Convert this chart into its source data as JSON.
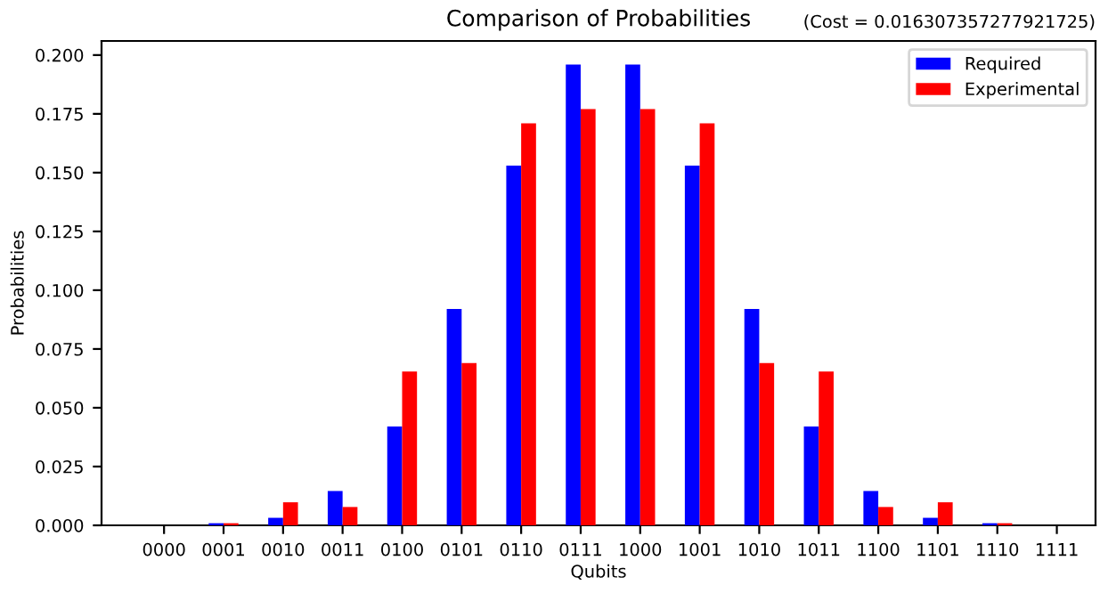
{
  "chart_data": {
    "type": "bar",
    "title": "Comparison of Probabilities",
    "xlabel": "Qubits",
    "ylabel": "Probabilities",
    "annotations": [
      "(Cost = 0.016307357277921725)"
    ],
    "categories": [
      "0000",
      "0001",
      "0010",
      "0011",
      "0100",
      "0101",
      "0110",
      "0111",
      "1000",
      "1001",
      "1010",
      "1011",
      "1100",
      "1101",
      "1110",
      "1111"
    ],
    "series": [
      {
        "name": "Required",
        "color": "#0000ff",
        "values": [
          0,
          0.0009,
          0.0032,
          0.0146,
          0.042,
          0.092,
          0.153,
          0.196,
          0.196,
          0.153,
          0.092,
          0.042,
          0.0146,
          0.0032,
          0.0009,
          0
        ]
      },
      {
        "name": "Experimental",
        "color": "#ff0000",
        "values": [
          0,
          0.0009,
          0.0098,
          0.0078,
          0.0654,
          0.069,
          0.171,
          0.177,
          0.177,
          0.171,
          0.069,
          0.0654,
          0.0078,
          0.0098,
          0.0009,
          0
        ]
      }
    ],
    "ylim": [
      0,
      0.206
    ],
    "yticks": [
      {
        "value": 0,
        "label": "0.000"
      },
      {
        "value": 0.025,
        "label": "0.025"
      },
      {
        "value": 0.05,
        "label": "0.050"
      },
      {
        "value": 0.075,
        "label": "0.075"
      },
      {
        "value": 0.1,
        "label": "0.100"
      },
      {
        "value": 0.125,
        "label": "0.125"
      },
      {
        "value": 0.15,
        "label": "0.150"
      },
      {
        "value": 0.175,
        "label": "0.175"
      },
      {
        "value": 0.2,
        "label": "0.200"
      }
    ],
    "grid": false,
    "legend": "top right"
  }
}
